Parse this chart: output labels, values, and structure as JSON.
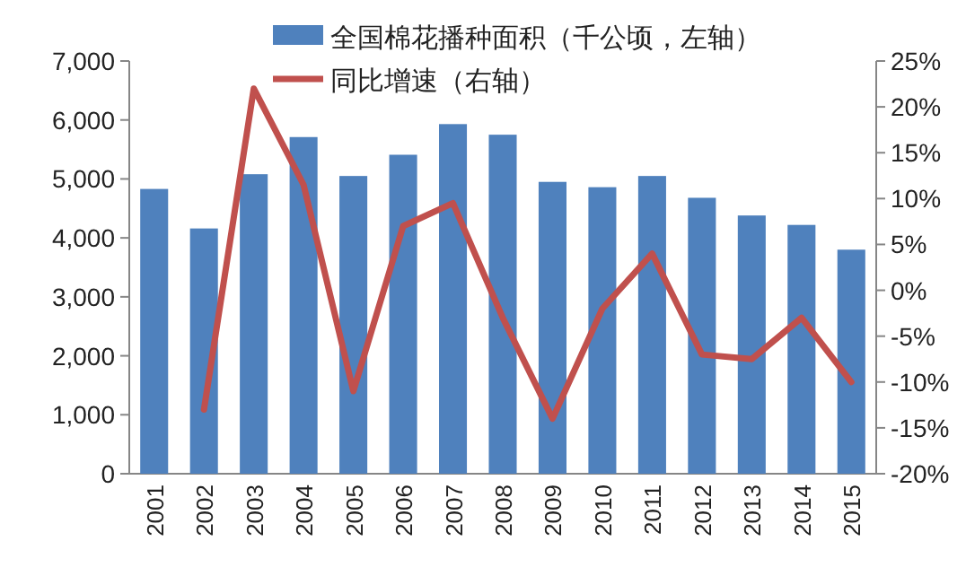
{
  "chart_data": {
    "type": "bar",
    "categories": [
      "2001",
      "2002",
      "2003",
      "2004",
      "2005",
      "2006",
      "2007",
      "2008",
      "2009",
      "2010",
      "2011",
      "2012",
      "2013",
      "2014",
      "2015"
    ],
    "series": [
      {
        "name": "全国棉花播种面积（千公顷，左轴）",
        "color": "#4f81bd",
        "values": [
          4830,
          4160,
          5080,
          5710,
          5050,
          5410,
          5930,
          5750,
          4950,
          4860,
          5050,
          4680,
          4380,
          4220,
          3800
        ]
      },
      {
        "name": "同比增速（右轴）",
        "type": "line",
        "axis": "y2",
        "color": "#c0504d",
        "values": [
          null,
          -13,
          22,
          11.5,
          -11,
          7,
          9.5,
          -3,
          -14,
          -2,
          4,
          -7,
          -7.5,
          -3,
          -10
        ]
      }
    ],
    "ylim": [
      0,
      7000
    ],
    "yticks": [
      0,
      {
        "value": 1000,
        "label": "1,000"
      },
      {
        "value": 2000,
        "label": "2,000"
      },
      {
        "value": 3000,
        "label": "3,000"
      },
      {
        "value": 4000,
        "label": "4,000"
      },
      {
        "value": 5000,
        "label": "5,000"
      },
      {
        "value": 6000,
        "label": "6,000"
      },
      {
        "value": 7000,
        "label": "7,000"
      }
    ],
    "y2lim": [
      -20,
      25
    ],
    "y2ticks": [
      {
        "value": -20,
        "label": "-20%"
      },
      {
        "value": -15,
        "label": "-15%"
      },
      {
        "value": -10,
        "label": "-10%"
      },
      {
        "value": -5,
        "label": "-5%"
      },
      {
        "value": 0,
        "label": "0%"
      },
      {
        "value": 5,
        "label": "5%"
      },
      {
        "value": 10,
        "label": "10%"
      },
      {
        "value": 15,
        "label": "15%"
      },
      {
        "value": 20,
        "label": "20%"
      },
      {
        "value": 25,
        "label": "25%"
      }
    ],
    "grid": false,
    "legend": "top"
  }
}
